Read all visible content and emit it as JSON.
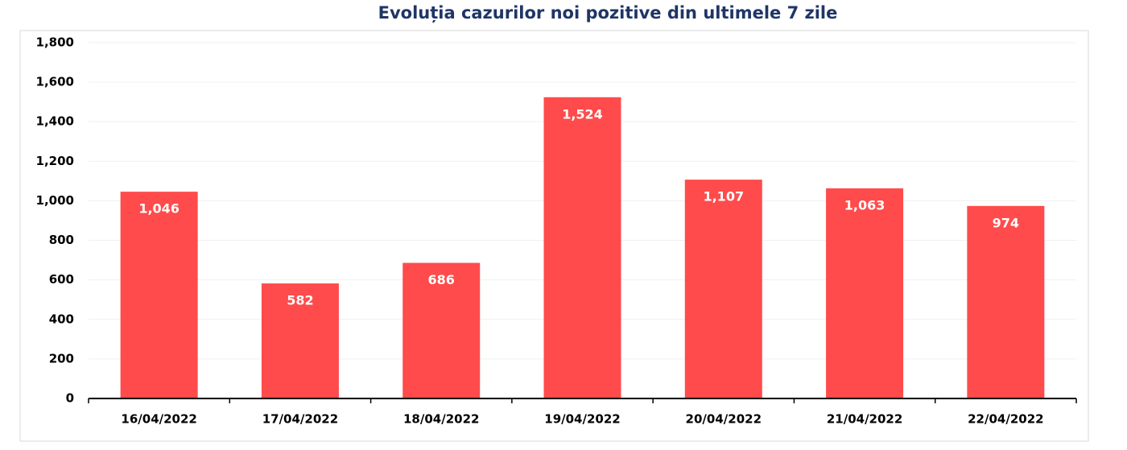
{
  "chart_data": {
    "type": "bar",
    "title": "Evoluția cazurilor noi pozitive din ultimele 7 zile",
    "categories": [
      "16/04/2022",
      "17/04/2022",
      "18/04/2022",
      "19/04/2022",
      "20/04/2022",
      "21/04/2022",
      "22/04/2022"
    ],
    "values": [
      1046,
      582,
      686,
      1524,
      1107,
      1063,
      974
    ],
    "value_labels": [
      "1,046",
      "582",
      "686",
      "1,524",
      "1,107",
      "1,063",
      "974"
    ],
    "color": "#ff4b4b",
    "ylim": [
      0,
      1800
    ],
    "yticks": [
      0,
      200,
      400,
      600,
      800,
      {
        "value": 1000,
        "label": "1,000"
      },
      {
        "value": 1200,
        "label": "1,200"
      },
      {
        "value": 1400,
        "label": "1,400"
      },
      {
        "value": 1600,
        "label": "1,600"
      },
      {
        "value": 1800,
        "label": "1,800"
      }
    ],
    "grid": true
  }
}
